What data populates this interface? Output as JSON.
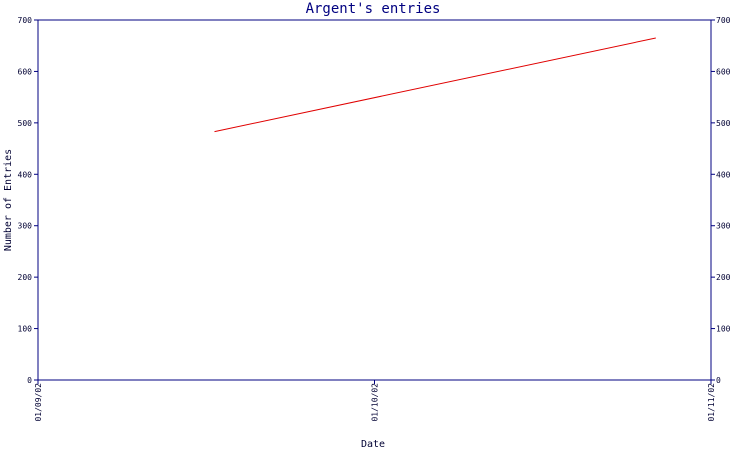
{
  "chart_data": {
    "type": "line",
    "title": "Argent's entries",
    "xlabel": "Date",
    "ylabel": "Number of Entries",
    "x_ticks": [
      "01/09/02",
      "01/10/02",
      "01/11/02"
    ],
    "x_domain": [
      "2002-09-01",
      "2002-11-01"
    ],
    "y_ticks": [
      0,
      100,
      200,
      300,
      400,
      500,
      600,
      700
    ],
    "ylim": [
      0,
      700
    ],
    "grid": false,
    "right_axis": true,
    "series": [
      {
        "color": "#e00000",
        "points": [
          {
            "x": "2002-09-17",
            "y": 483
          },
          {
            "x": "2002-10-27",
            "y": 665
          }
        ]
      }
    ],
    "colors": {
      "axis": "#000080",
      "text": "#000033",
      "line": "#e00000"
    }
  }
}
